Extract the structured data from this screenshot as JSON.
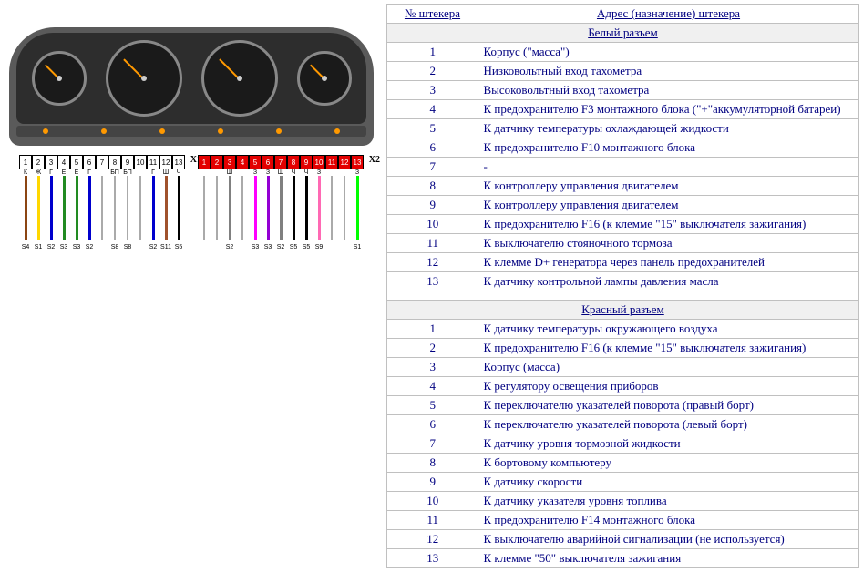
{
  "table": {
    "headers": {
      "col1": "№ штекера",
      "col2": "Адрес (назначение) штекера"
    },
    "section1": {
      "title": "Белый разъем",
      "rows": [
        {
          "n": "1",
          "d": "Корпус (\"масса\")"
        },
        {
          "n": "2",
          "d": "Низковольтный вход тахометра"
        },
        {
          "n": "3",
          "d": "Высоковольтный вход тахометра"
        },
        {
          "n": "4",
          "d": "К предохранителю F3 монтажного блока (\"+\"аккумуляторной батареи)"
        },
        {
          "n": "5",
          "d": "К датчику температуры охлаждающей жидкости"
        },
        {
          "n": "6",
          "d": "К предохранителю F10 монтажного блока"
        },
        {
          "n": "7",
          "d": "-"
        },
        {
          "n": "8",
          "d": "К контроллеру управления двигателем"
        },
        {
          "n": "9",
          "d": "К контроллеру управления двигателем"
        },
        {
          "n": "10",
          "d": "К предохранителю F16 (к клемме \"15\" выключателя зажигания)"
        },
        {
          "n": "11",
          "d": "К выключателю стояночного тормоза"
        },
        {
          "n": "12",
          "d": "К клемме D+ генератора через панель предохранителей"
        },
        {
          "n": "13",
          "d": "К датчику контрольной лампы давления масла"
        }
      ]
    },
    "section2": {
      "title": "Красный разъем",
      "rows": [
        {
          "n": "1",
          "d": "К датчику температуры окружающего воздуха"
        },
        {
          "n": "2",
          "d": "К предохранителю F16 (к клемме \"15\" выключателя зажигания)"
        },
        {
          "n": "3",
          "d": "Корпус (масса)"
        },
        {
          "n": "4",
          "d": "К регулятору освещения приборов"
        },
        {
          "n": "5",
          "d": "К переключателю указателей поворота (правый борт)"
        },
        {
          "n": "6",
          "d": "К переключателю указателей поворота (левый борт)"
        },
        {
          "n": "7",
          "d": "К датчику уровня тормозной жидкости"
        },
        {
          "n": "8",
          "d": "К бортовому компьютеру"
        },
        {
          "n": "9",
          "d": "К датчику скорости"
        },
        {
          "n": "10",
          "d": "К датчику указателя уровня топлива"
        },
        {
          "n": "11",
          "d": "К предохранителю F14 монтажного блока"
        },
        {
          "n": "12",
          "d": "К выключателю аварийной сигнализации (не используется)"
        },
        {
          "n": "13",
          "d": "К клемме \"50\" выключателя зажигания"
        }
      ]
    }
  },
  "connectors": {
    "x1": {
      "name": "Х1",
      "pins": [
        "1",
        "2",
        "3",
        "4",
        "5",
        "6",
        "7",
        "8",
        "9",
        "10",
        "11",
        "12",
        "13"
      ],
      "bg": "white",
      "labels": [
        "К",
        "Ж",
        "Г",
        "Е",
        "Е",
        "Г",
        "",
        "БП",
        "БП",
        "",
        "Г",
        "Ш",
        "Ч"
      ],
      "colors": [
        "#8B4513",
        "#FFD700",
        "#0000CD",
        "#228B22",
        "#228B22",
        "#0000CD",
        "#fff",
        "#fff",
        "#fff",
        "#fff",
        "#0000CD",
        "#A0522D",
        "#000"
      ],
      "codes": [
        "S4",
        "S1",
        "S2",
        "S3",
        "S3",
        "S2",
        "",
        "S8",
        "S8",
        "",
        "S2",
        "S11",
        "S5"
      ]
    },
    "x2": {
      "name": "Х2",
      "pins": [
        "1",
        "2",
        "3",
        "4",
        "5",
        "6",
        "7",
        "8",
        "9",
        "10",
        "11",
        "12",
        "13"
      ],
      "bg": "red",
      "labels": [
        "",
        "",
        "Ш",
        "",
        "З",
        "З",
        "Ш",
        "Ч",
        "Ч",
        "З",
        "",
        "",
        "З"
      ],
      "colors": [
        "#fff",
        "#fff",
        "#808080",
        "#fff",
        "#FF00FF",
        "#9400D3",
        "#808080",
        "#000",
        "#000",
        "#FF69B4",
        "#fff",
        "#fff",
        "#00FF00"
      ],
      "codes": [
        "",
        "",
        "S2",
        "",
        "S3",
        "S3",
        "S2",
        "S5",
        "S5",
        "S9",
        "",
        "",
        "S1"
      ]
    }
  },
  "style": {
    "text_color": "#000080",
    "border_color": "#c0c0c0",
    "font_family": "Times New Roman"
  }
}
